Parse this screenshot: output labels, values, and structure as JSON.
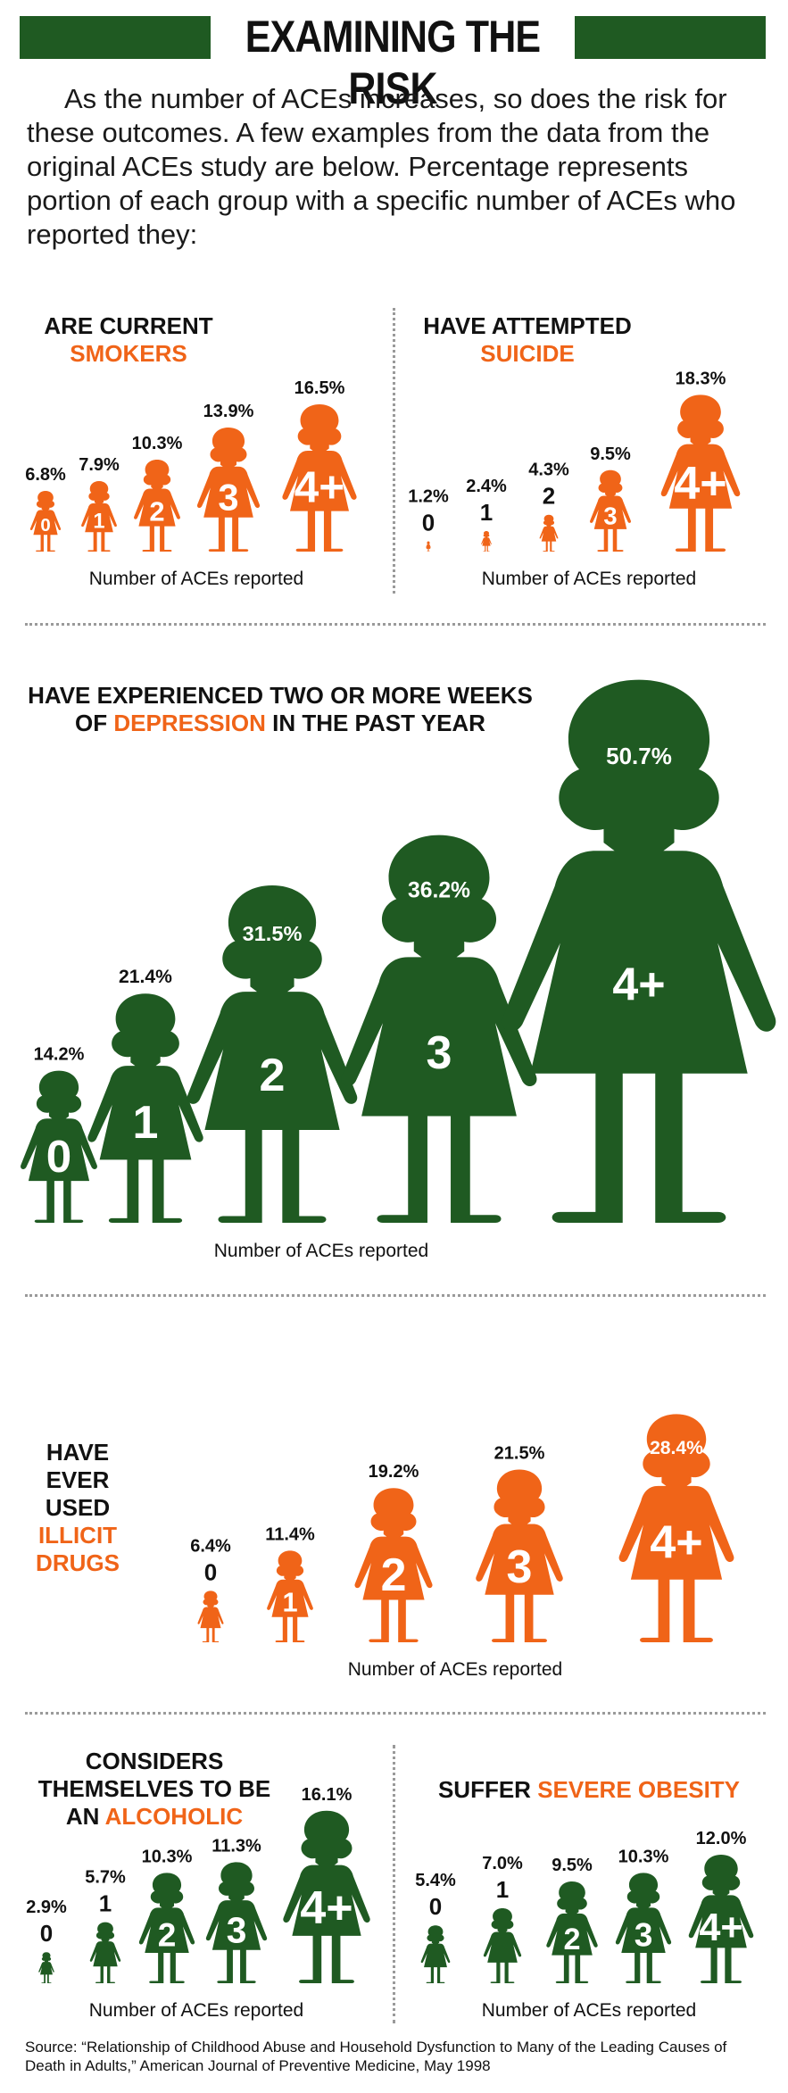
{
  "title": "EXAMINING THE RISK",
  "intro": "As the number of ACEs increases, so does the risk for these outcomes. A few examples from the data from the original ACEs study are below. Percentage represents portion of each group with a specific number of ACEs who reported they:",
  "colors": {
    "green": "#1f5a22",
    "orange": "#f06418",
    "divider": "#9a9a9a"
  },
  "source": "Source: “Relationship of Childhood Abuse and Household Dysfunction to Many of the Leading Causes of Death in Adults,” American Journal of Preventive Medicine, May 1998",
  "chart_data": [
    {
      "id": "smokers",
      "type": "bar",
      "color": "orange",
      "title_pre": "ARE CURRENT",
      "title_hl": "SMOKERS",
      "title_post": "",
      "xlabel": "Number of ACEs reported",
      "categories": [
        "0",
        "1",
        "2",
        "3",
        "4+"
      ],
      "values": [
        6.8,
        7.9,
        10.3,
        13.9,
        16.5
      ],
      "value_labels": [
        "6.8%",
        "7.9%",
        "10.3%",
        "13.9%",
        "16.5%"
      ]
    },
    {
      "id": "suicide",
      "type": "bar",
      "color": "orange",
      "title_pre": "HAVE ATTEMPTED",
      "title_hl": "SUICIDE",
      "title_post": "",
      "xlabel": "Number of ACEs reported",
      "categories": [
        "0",
        "1",
        "2",
        "3",
        "4+"
      ],
      "values": [
        1.2,
        2.4,
        4.3,
        9.5,
        18.3
      ],
      "value_labels": [
        "1.2%",
        "2.4%",
        "4.3%",
        "9.5%",
        "18.3%"
      ]
    },
    {
      "id": "depression",
      "type": "bar",
      "color": "green",
      "title_pre": "HAVE EXPERIENCED TWO OR MORE WEEKS OF",
      "title_hl": "DEPRESSION",
      "title_post": "IN THE PAST YEAR",
      "xlabel": "Number of ACEs reported",
      "categories": [
        "0",
        "1",
        "2",
        "3",
        "4+"
      ],
      "values": [
        14.2,
        21.4,
        31.5,
        36.2,
        50.7
      ],
      "value_labels": [
        "14.2%",
        "21.4%",
        "31.5%",
        "36.2%",
        "50.7%"
      ]
    },
    {
      "id": "drugs",
      "type": "bar",
      "color": "orange",
      "title_pre": "HAVE EVER USED",
      "title_hl": "ILLICIT DRUGS",
      "title_post": "",
      "xlabel": "Number of ACEs reported",
      "categories": [
        "0",
        "1",
        "2",
        "3",
        "4+"
      ],
      "values": [
        6.4,
        11.4,
        19.2,
        21.5,
        28.4
      ],
      "value_labels": [
        "6.4%",
        "11.4%",
        "19.2%",
        "21.5%",
        "28.4%"
      ]
    },
    {
      "id": "alcoholic",
      "type": "bar",
      "color": "green",
      "title_pre": "CONSIDERS THEMSELVES TO BE AN",
      "title_hl": "ALCOHOLIC",
      "title_post": "",
      "xlabel": "Number of ACEs reported",
      "categories": [
        "0",
        "1",
        "2",
        "3",
        "4+"
      ],
      "values": [
        2.9,
        5.7,
        10.3,
        11.3,
        16.1
      ],
      "value_labels": [
        "2.9%",
        "5.7%",
        "10.3%",
        "11.3%",
        "16.1%"
      ]
    },
    {
      "id": "obesity",
      "type": "bar",
      "color": "green",
      "title_pre": "SUFFER",
      "title_hl": "SEVERE OBESITY",
      "title_post": "",
      "xlabel": "Number of ACEs reported",
      "categories": [
        "0",
        "1",
        "2",
        "3",
        "4+"
      ],
      "values": [
        5.4,
        7.0,
        9.5,
        10.3,
        12.0
      ],
      "value_labels": [
        "5.4%",
        "7.0%",
        "9.5%",
        "10.3%",
        "12.0%"
      ]
    }
  ]
}
